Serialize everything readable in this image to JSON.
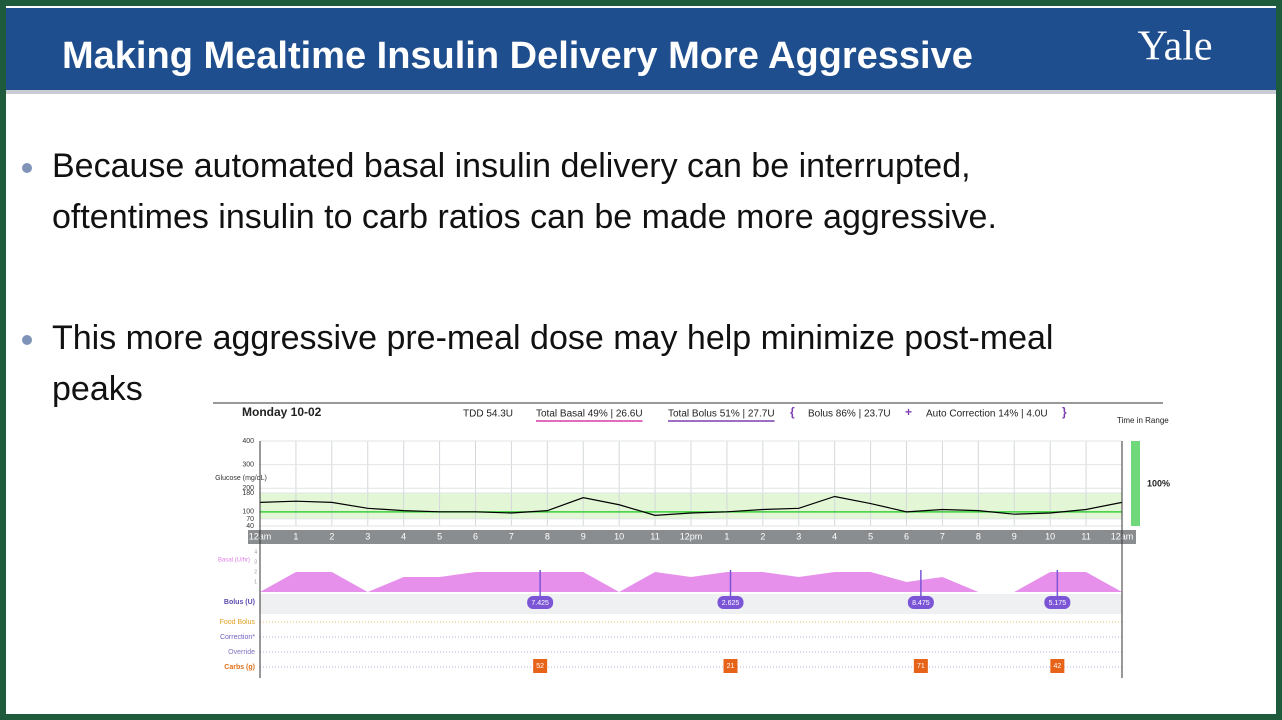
{
  "header": {
    "title": "Making Mealtime Insulin Delivery More Aggressive",
    "logo": "Yale"
  },
  "bullets": [
    [
      "Because automated basal insulin delivery can be interrupted,",
      "oftentimes insulin to carb ratios can be made more aggressive."
    ],
    [
      "This more aggressive pre-meal dose may help minimize post-meal",
      "peaks"
    ]
  ],
  "report": {
    "day": "Monday 10-02",
    "summary": [
      "TDD 54.3U",
      "Total Basal 49% | 26.6U",
      "Total Bolus 51% | 27.7U",
      "Bolus 86% | 23.7U",
      "Auto Correction 14% | 4.0U"
    ],
    "symbols": [
      "{",
      "+",
      "}"
    ],
    "time_in_range_label": "Time in Range",
    "time_in_range": "100%",
    "xlim": [
      0,
      24
    ],
    "xticks": [
      {
        "value": 0,
        "label": "12am"
      },
      1,
      2,
      3,
      4,
      5,
      6,
      7,
      8,
      9,
      10,
      11,
      {
        "value": 12,
        "label": "12pm"
      },
      {
        "value": 13,
        "label": "1"
      },
      {
        "value": 14,
        "label": "2"
      },
      {
        "value": 15,
        "label": "3"
      },
      {
        "value": 16,
        "label": "4"
      },
      {
        "value": 17,
        "label": "5"
      },
      {
        "value": 18,
        "label": "6"
      },
      {
        "value": 19,
        "label": "7"
      },
      {
        "value": 20,
        "label": "8"
      },
      {
        "value": 21,
        "label": "9"
      },
      {
        "value": 22,
        "label": "10"
      },
      {
        "value": 23,
        "label": "11"
      },
      {
        "value": 24,
        "label": "12am"
      }
    ],
    "glucose": {
      "type": "line",
      "label": "Glucose (mg/dL)",
      "color": "#000000",
      "ylim": [
        40,
        400
      ],
      "yticks": [
        40,
        70,
        100,
        180,
        200,
        300,
        400
      ],
      "target_range": [
        70,
        180
      ],
      "target": 100,
      "x": [
        0,
        1,
        2,
        3,
        4,
        5,
        6,
        7,
        8,
        9,
        10,
        11,
        12,
        13,
        14,
        15,
        16,
        17,
        18,
        19,
        20,
        21,
        22,
        23,
        24
      ],
      "values": [
        140,
        145,
        140,
        115,
        105,
        100,
        100,
        95,
        105,
        160,
        130,
        85,
        95,
        100,
        110,
        115,
        165,
        135,
        100,
        110,
        105,
        90,
        95,
        110,
        140
      ]
    },
    "basal": {
      "type": "area",
      "label": "Basal (U/hr)",
      "color": "#e27ce8",
      "ylim": [
        0,
        4
      ],
      "yticks": [
        1,
        2,
        3,
        4
      ],
      "x": [
        0,
        1,
        2,
        3,
        4,
        5,
        6,
        7,
        8,
        9,
        10,
        11,
        12,
        13,
        14,
        15,
        16,
        17,
        18,
        19,
        20,
        21,
        22,
        23,
        24
      ],
      "values": [
        0,
        2,
        2,
        0,
        1.5,
        1.5,
        2,
        2,
        2,
        2,
        0,
        2,
        1.5,
        2,
        2,
        1.5,
        2,
        2,
        1,
        1.5,
        0,
        0,
        2,
        2,
        0
      ]
    },
    "rows": [
      "Bolus (U)",
      "Food Bolus",
      "Correction*",
      "Override",
      "Carbs (g)"
    ],
    "bolus": {
      "x": [
        7.8,
        13.1,
        18.4,
        22.2
      ],
      "values": [
        7.425,
        2.625,
        8.475,
        5.175
      ],
      "color": "#7b55d6"
    },
    "carbs": {
      "x": [
        7.8,
        13.1,
        18.4,
        22.2
      ],
      "values": [
        52,
        21,
        71,
        42
      ],
      "color": "#e8631a"
    }
  }
}
